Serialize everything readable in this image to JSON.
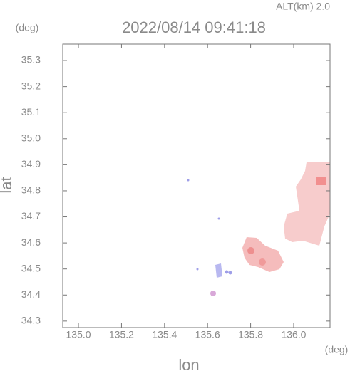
{
  "chart_data": {
    "type": "radar-map",
    "title": "2022/08/14 09:41:18",
    "subtitle": "ALT(km) 2.0",
    "y_unit": "(deg)",
    "x_unit": "(deg)",
    "xlabel": "lon",
    "ylabel": "lat",
    "xlim": [
      134.927,
      136.169
    ],
    "ylim": [
      34.275,
      35.363
    ],
    "xticks": [
      {
        "value": 135.0,
        "label": "135.0"
      },
      135.2,
      135.4,
      135.6,
      135.8,
      {
        "value": 136.0,
        "label": "136.0"
      }
    ],
    "yticks": [
      34.3,
      34.4,
      34.5,
      34.6,
      34.7,
      34.8,
      34.9,
      {
        "value": 35.0,
        "label": "35.0"
      },
      35.1,
      35.2,
      35.3
    ]
  }
}
